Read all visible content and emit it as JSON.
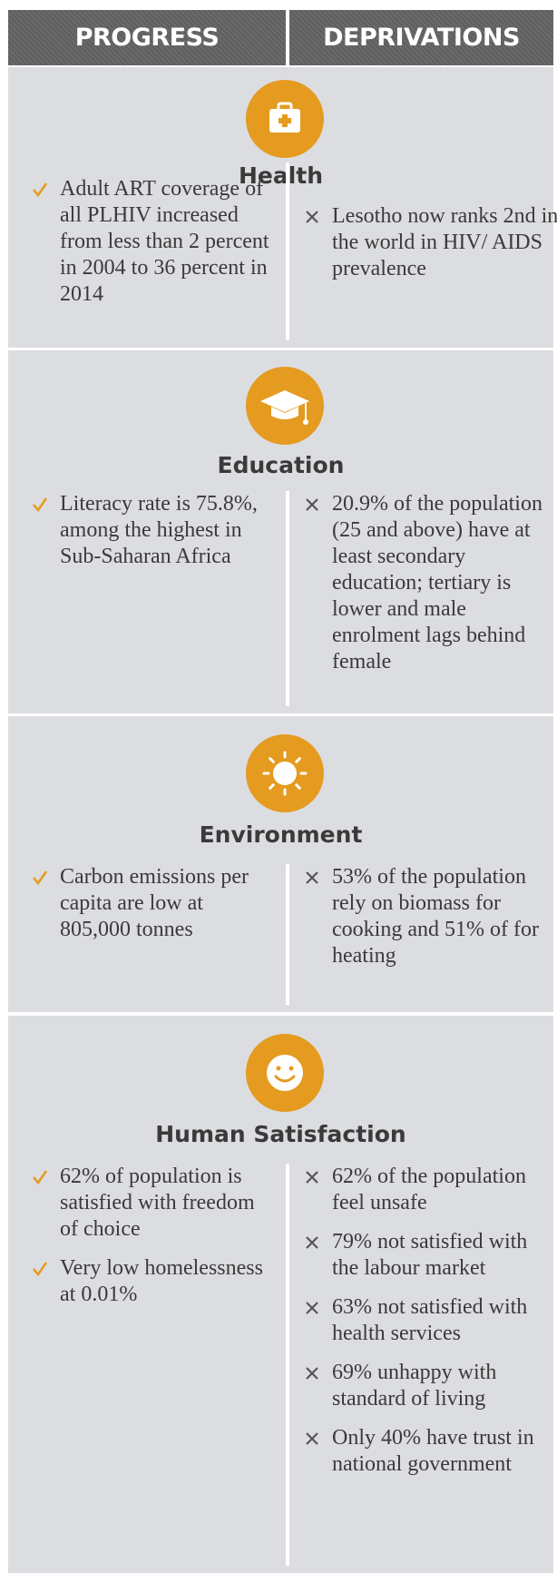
{
  "header": [
    "PROGRESS",
    "DEPRIVATIONS"
  ],
  "sections": [
    {
      "title": "Health",
      "progress": [
        "Adult ART coverage of all PLHIV increased from less than 2 percent in 2004 to 36 percent in 2014"
      ],
      "deprivations": [
        "Lesotho now ranks 2nd in the world in HIV/ AIDS prevalence"
      ]
    },
    {
      "title": "Education",
      "progress": [
        "Literacy rate is 75.8%, among the highest in Sub-Saharan Africa"
      ],
      "deprivations": [
        "20.9% of the population (25 and above) have at least secondary education; tertiary is lower and male enrolment lags behind female"
      ]
    },
    {
      "title": "Environment",
      "progress": [
        "Carbon emissions per capita are low at 805,000 tonnes"
      ],
      "deprivations": [
        "53% of the population rely on biomass for cooking and 51% of  for heating"
      ]
    },
    {
      "title": "Human Satisfaction",
      "progress": [
        "62% of population is satisfied with freedom of choice",
        "Very low homelessness at 0.01%"
      ],
      "deprivations": [
        "62% of the population feel unsafe",
        "79% not satisfied with the labour market",
        "63% not satisfied with health services",
        "69% unhappy with standard of living",
        "Only 40% have trust in national government"
      ]
    }
  ]
}
